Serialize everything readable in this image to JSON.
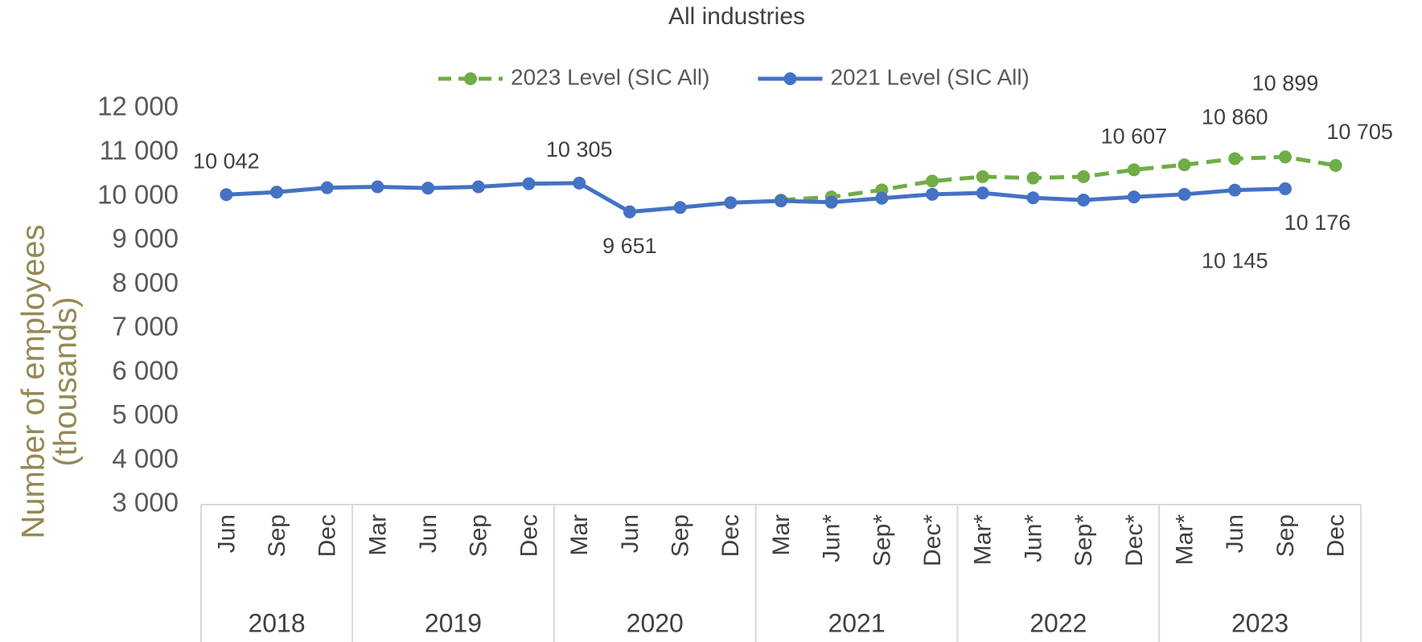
{
  "chart_data": {
    "type": "line",
    "title": "All industries",
    "y_label": [
      "Number of employees",
      "(thousands)"
    ],
    "categories": [
      "Jun",
      "Sep",
      "Dec",
      "Mar",
      "Jun",
      "Sep",
      "Dec",
      "Mar",
      "Jun",
      "Sep",
      "Dec",
      "Mar",
      "Jun*",
      "Sep*",
      "Dec*",
      "Mar*",
      "Jun*",
      "Sep*",
      "Dec*",
      "Mar*",
      "Jun",
      "Sep",
      "Dec"
    ],
    "groups": [
      {
        "label": "2018",
        "count": 3
      },
      {
        "label": "2019",
        "count": 4
      },
      {
        "label": "2020",
        "count": 4
      },
      {
        "label": "2021",
        "count": 4
      },
      {
        "label": "2022",
        "count": 4
      },
      {
        "label": "2023",
        "count": 4
      }
    ],
    "series": [
      {
        "name": "2023 Level (SIC All)",
        "color": "#70ad47",
        "dashed": true,
        "values": [
          null,
          null,
          null,
          null,
          null,
          null,
          null,
          null,
          null,
          null,
          null,
          9920,
          9990,
          10150,
          10350,
          10450,
          10420,
          10450,
          10607,
          10720,
          10860,
          10899,
          10705
        ],
        "value_labels": [
          null,
          null,
          null,
          null,
          null,
          null,
          null,
          null,
          null,
          null,
          null,
          null,
          null,
          null,
          null,
          null,
          null,
          null,
          "10 607",
          null,
          "10 860",
          "10 899",
          "10 705"
        ]
      },
      {
        "name": "2021 Level (SIC All)",
        "color": "#4472c4",
        "dashed": false,
        "values": [
          10042,
          10100,
          10200,
          10220,
          10190,
          10220,
          10290,
          10305,
          9651,
          9750,
          9860,
          9900,
          9870,
          9960,
          10050,
          10080,
          9970,
          9920,
          9990,
          10050,
          10145,
          10176,
          null
        ],
        "value_labels": [
          "10 042",
          null,
          null,
          null,
          null,
          null,
          null,
          "10 305",
          "9 651",
          null,
          null,
          null,
          null,
          null,
          null,
          null,
          null,
          null,
          null,
          null,
          "10 145",
          "10 176",
          null
        ]
      }
    ],
    "ylim": [
      3000,
      12000
    ],
    "yticks": [
      {
        "value": 3000,
        "label": "3 000"
      },
      {
        "value": 4000,
        "label": "4 000"
      },
      {
        "value": 5000,
        "label": "5 000"
      },
      {
        "value": 6000,
        "label": "6 000"
      },
      {
        "value": 7000,
        "label": "7 000"
      },
      {
        "value": 8000,
        "label": "8 000"
      },
      {
        "value": 9000,
        "label": "9 000"
      },
      {
        "value": 10000,
        "label": "10 000"
      },
      {
        "value": 11000,
        "label": "11 000"
      },
      {
        "value": 12000,
        "label": "12 000"
      }
    ],
    "legend": "top"
  }
}
